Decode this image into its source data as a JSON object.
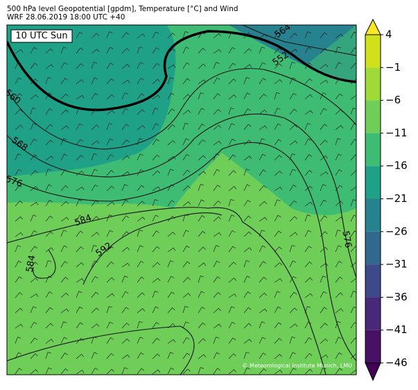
{
  "header": {
    "title": "500 hPa level Geopotential [gpdm], Temperature [°C] and Wind",
    "subtitle": "WRF 28.06.2019 18:00 UTC +40"
  },
  "map": {
    "label": "10 UTC Sun",
    "contour_labels": [
      "560",
      "552",
      "564",
      "568",
      "576",
      "584",
      "592",
      "584",
      "576"
    ],
    "credit": "© Meteorological Institute Munich, LMU"
  },
  "colorbar": {
    "ticks": [
      4,
      {
        "value": -1,
        "label": "−1"
      },
      {
        "value": -6,
        "label": "−6"
      },
      {
        "value": -11,
        "label": "−11"
      },
      {
        "value": -16,
        "label": "−16"
      },
      {
        "value": -21,
        "label": "−21"
      },
      {
        "value": -26,
        "label": "−26"
      },
      {
        "value": -31,
        "label": "−31"
      },
      {
        "value": -36,
        "label": "−36"
      },
      {
        "value": -41,
        "label": "−41"
      },
      {
        "value": -46,
        "label": "−46"
      }
    ],
    "colors": [
      "#fde725",
      "#d0e11c",
      "#a0da39",
      "#6ece58",
      "#3fbc73",
      "#1fa187",
      "#26828e",
      "#31688e",
      "#3e4989",
      "#482878",
      "#471265",
      "#440154"
    ]
  }
}
